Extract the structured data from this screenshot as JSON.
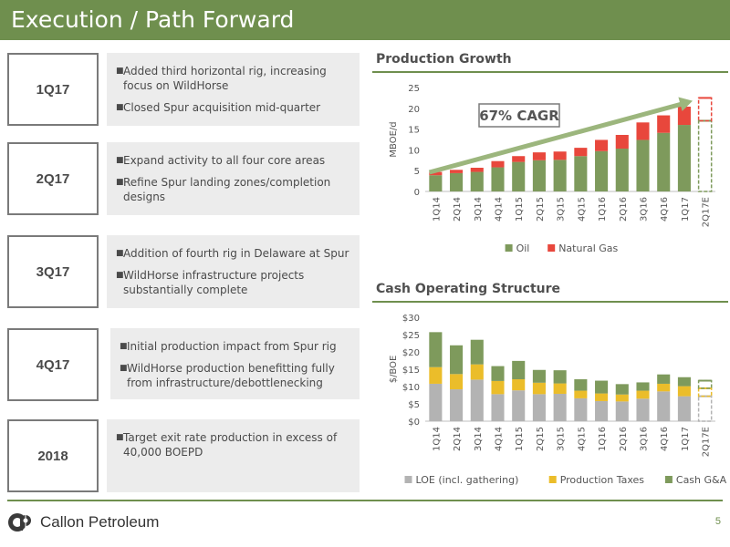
{
  "header": {
    "title": "Execution / Path Forward"
  },
  "timeline": [
    {
      "label": "1Q17",
      "bullets": [
        "Added third horizontal rig, increasing focus on WildHorse",
        "Closed Spur acquisition mid-quarter"
      ]
    },
    {
      "label": "2Q17",
      "bullets": [
        "Expand activity to all four core areas",
        "Refine Spur landing zones/completion designs"
      ]
    },
    {
      "label": "3Q17",
      "bullets": [
        "Addition of fourth rig in Delaware at Spur",
        "WildHorse infrastructure projects substantially complete"
      ]
    },
    {
      "label": "4Q17",
      "bullets": [
        "Initial production impact from Spur rig",
        "WildHorse production benefitting fully from infrastructure/debottlenecking"
      ]
    },
    {
      "label": "2018",
      "bullets": [
        "Target exit rate production in excess of 40,000 BOEPD"
      ]
    }
  ],
  "production": {
    "section_title": "Production Growth",
    "cagr_label": "67% CAGR"
  },
  "cost": {
    "section_title": "Cash Operating Structure"
  },
  "chart_data": [
    {
      "type": "bar",
      "stacked": true,
      "categories": [
        "1Q14",
        "2Q14",
        "3Q14",
        "4Q14",
        "1Q15",
        "2Q15",
        "3Q15",
        "4Q15",
        "1Q16",
        "2Q16",
        "3Q16",
        "4Q16",
        "1Q17",
        "2Q17E"
      ],
      "series": [
        {
          "name": "Oil",
          "color": "#7e9a5c",
          "values": [
            3.9,
            4.4,
            4.7,
            5.8,
            7.1,
            7.5,
            7.6,
            8.5,
            9.7,
            10.3,
            12.4,
            14.1,
            16.0,
            17.0
          ]
        },
        {
          "name": "Natural Gas",
          "color": "#e8473c",
          "values": [
            0.8,
            0.8,
            1.0,
            1.5,
            1.4,
            1.9,
            2.0,
            2.0,
            2.7,
            3.3,
            4.2,
            4.2,
            4.4,
            5.5
          ]
        }
      ],
      "estimate_category": "2Q17E",
      "ylabel": "MBOE/d",
      "ylim": [
        0,
        25
      ],
      "yticks": [
        "0",
        "5",
        "10",
        "15",
        "20",
        "25"
      ],
      "legend": "bottom",
      "annotation": "67% CAGR"
    },
    {
      "type": "bar",
      "stacked": true,
      "categories": [
        "1Q14",
        "2Q14",
        "3Q14",
        "4Q14",
        "1Q15",
        "2Q15",
        "3Q15",
        "4Q15",
        "1Q16",
        "2Q16",
        "3Q16",
        "4Q16",
        "1Q17",
        "2Q17E"
      ],
      "series": [
        {
          "name": "LOE (incl. gathering)",
          "color": "#b3b3b3",
          "values": [
            10.8,
            9.2,
            12.0,
            7.8,
            8.9,
            7.8,
            7.9,
            6.6,
            5.8,
            5.7,
            6.5,
            8.6,
            7.2,
            7.2
          ]
        },
        {
          "name": "Production Taxes",
          "color": "#ebbd2a",
          "values": [
            4.8,
            4.4,
            4.4,
            3.8,
            3.2,
            3.3,
            3.0,
            2.2,
            2.2,
            2.0,
            2.3,
            2.2,
            2.9,
            2.3
          ]
        },
        {
          "name": "Cash G&A",
          "color": "#7e9a5c",
          "values": [
            10.1,
            8.3,
            7.1,
            4.3,
            5.3,
            3.7,
            3.8,
            3.3,
            3.7,
            3.0,
            2.4,
            2.7,
            2.6,
            2.2
          ]
        }
      ],
      "estimate_category": "2Q17E",
      "ylabel": "$/BOE",
      "ylim": [
        0,
        30
      ],
      "yticks": [
        "$0",
        "$5",
        "$10",
        "$15",
        "$20",
        "$25",
        "$30"
      ],
      "legend": "bottom"
    }
  ],
  "footer": {
    "company": "Callon Petroleum",
    "page": "5"
  }
}
